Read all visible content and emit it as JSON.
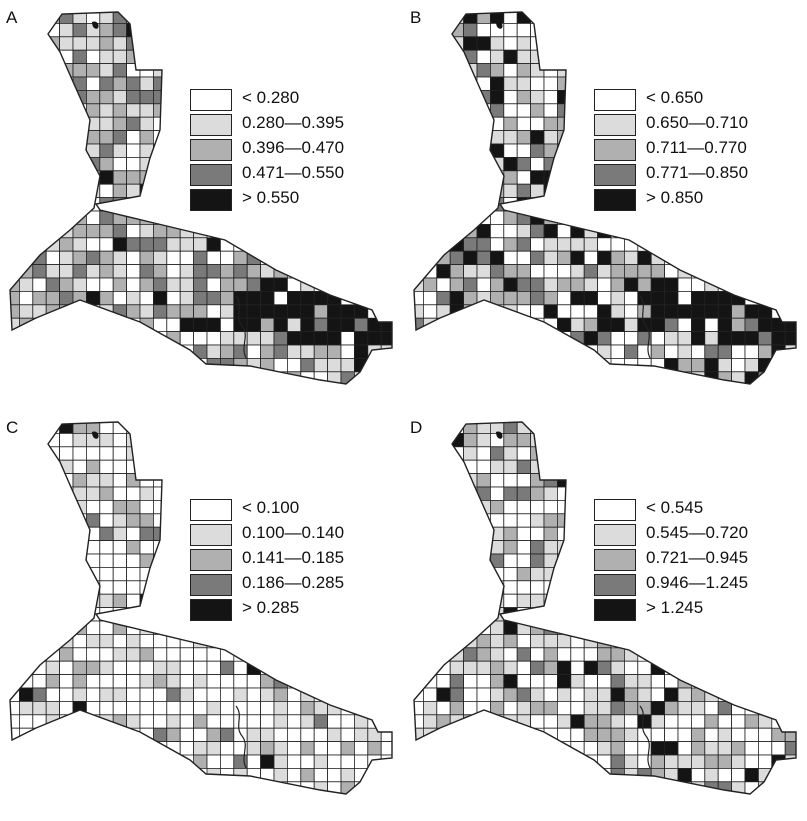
{
  "colors": {
    "c0": "#ffffff",
    "c1": "#dcdcdc",
    "c2": "#b0b0b0",
    "c3": "#7a7a7a",
    "c4": "#141414",
    "border": "#222222"
  },
  "panels": [
    {
      "id": "a",
      "letter": "A",
      "seed": 11,
      "bias": [
        0.2,
        0.28,
        0.27,
        0.2,
        0.05
      ],
      "dark_region": true,
      "legend": [
        "< 0.280",
        "0.280—0.395",
        "0.396—0.470",
        "0.471—0.550",
        "> 0.550"
      ]
    },
    {
      "id": "b",
      "letter": "B",
      "seed": 29,
      "bias": [
        0.3,
        0.22,
        0.2,
        0.14,
        0.14
      ],
      "dark_region": true,
      "legend": [
        "< 0.650",
        "0.650—0.710",
        "0.711—0.770",
        "0.771—0.850",
        "> 0.850"
      ]
    },
    {
      "id": "c",
      "letter": "C",
      "seed": 47,
      "bias": [
        0.55,
        0.27,
        0.12,
        0.04,
        0.02
      ],
      "dark_region": false,
      "legend": [
        "< 0.100",
        "0.100—0.140",
        "0.141—0.185",
        "0.186—0.285",
        "> 0.285"
      ]
    },
    {
      "id": "d",
      "letter": "D",
      "seed": 73,
      "bias": [
        0.42,
        0.28,
        0.17,
        0.07,
        0.06
      ],
      "dark_region": false,
      "legend": [
        "< 0.545",
        "0.545—0.720",
        "0.721—0.945",
        "0.946—1.245",
        "> 1.245"
      ]
    }
  ]
}
